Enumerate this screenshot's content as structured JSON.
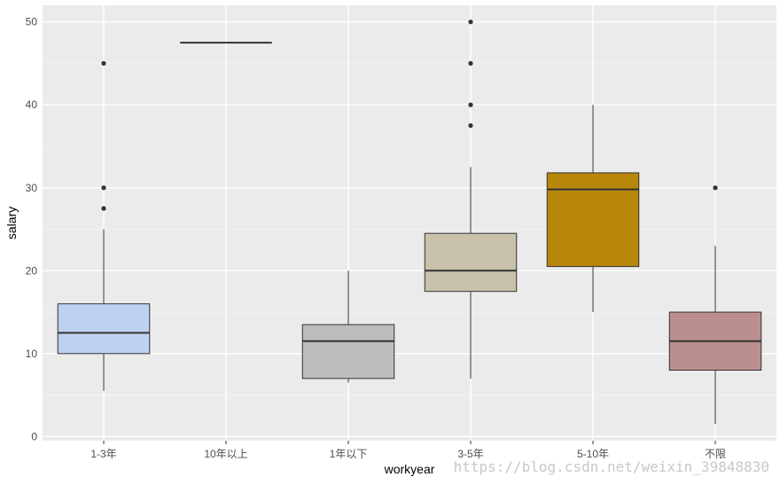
{
  "chart_data": {
    "type": "boxplot",
    "xlabel": "workyear",
    "ylabel": "salary",
    "ylim": [
      -0.5,
      52
    ],
    "y_ticks": [
      0,
      10,
      20,
      30,
      40,
      50
    ],
    "grid": true,
    "categories": [
      "1-3年",
      "10年以上",
      "1年以下",
      "3-5年",
      "5-10年",
      "不限"
    ],
    "boxes": [
      {
        "category": "1-3年",
        "fill": "#bdd1f0",
        "whisker_low": 5.5,
        "q1": 10,
        "median": 12.5,
        "q3": 16,
        "whisker_high": 25,
        "outliers": [
          27.5,
          30,
          45
        ]
      },
      {
        "category": "10年以上",
        "fill": "#9ecae1",
        "whisker_low": 47.5,
        "q1": 47.5,
        "median": 47.5,
        "q3": 47.5,
        "whisker_high": 47.5,
        "outliers": []
      },
      {
        "category": "1年以下",
        "fill": "#bcbcbc",
        "whisker_low": 6.5,
        "q1": 7,
        "median": 11.5,
        "q3": 13.5,
        "whisker_high": 20,
        "outliers": []
      },
      {
        "category": "3-5年",
        "fill": "#c8c2aa",
        "whisker_low": 7,
        "q1": 17.5,
        "median": 20,
        "q3": 24.5,
        "whisker_high": 32.5,
        "outliers": [
          37.5,
          40,
          45,
          50
        ]
      },
      {
        "category": "5-10年",
        "fill": "#b8860b",
        "whisker_low": 15,
        "q1": 20.5,
        "median": 29.8,
        "q3": 31.8,
        "whisker_high": 40,
        "outliers": []
      },
      {
        "category": "不限",
        "fill": "#bc8f8f",
        "whisker_low": 1.5,
        "q1": 8,
        "median": 11.5,
        "q3": 15,
        "whisker_high": 23,
        "outliers": [
          30
        ]
      }
    ]
  },
  "watermark": "https://blog.csdn.net/weixin_39848830"
}
